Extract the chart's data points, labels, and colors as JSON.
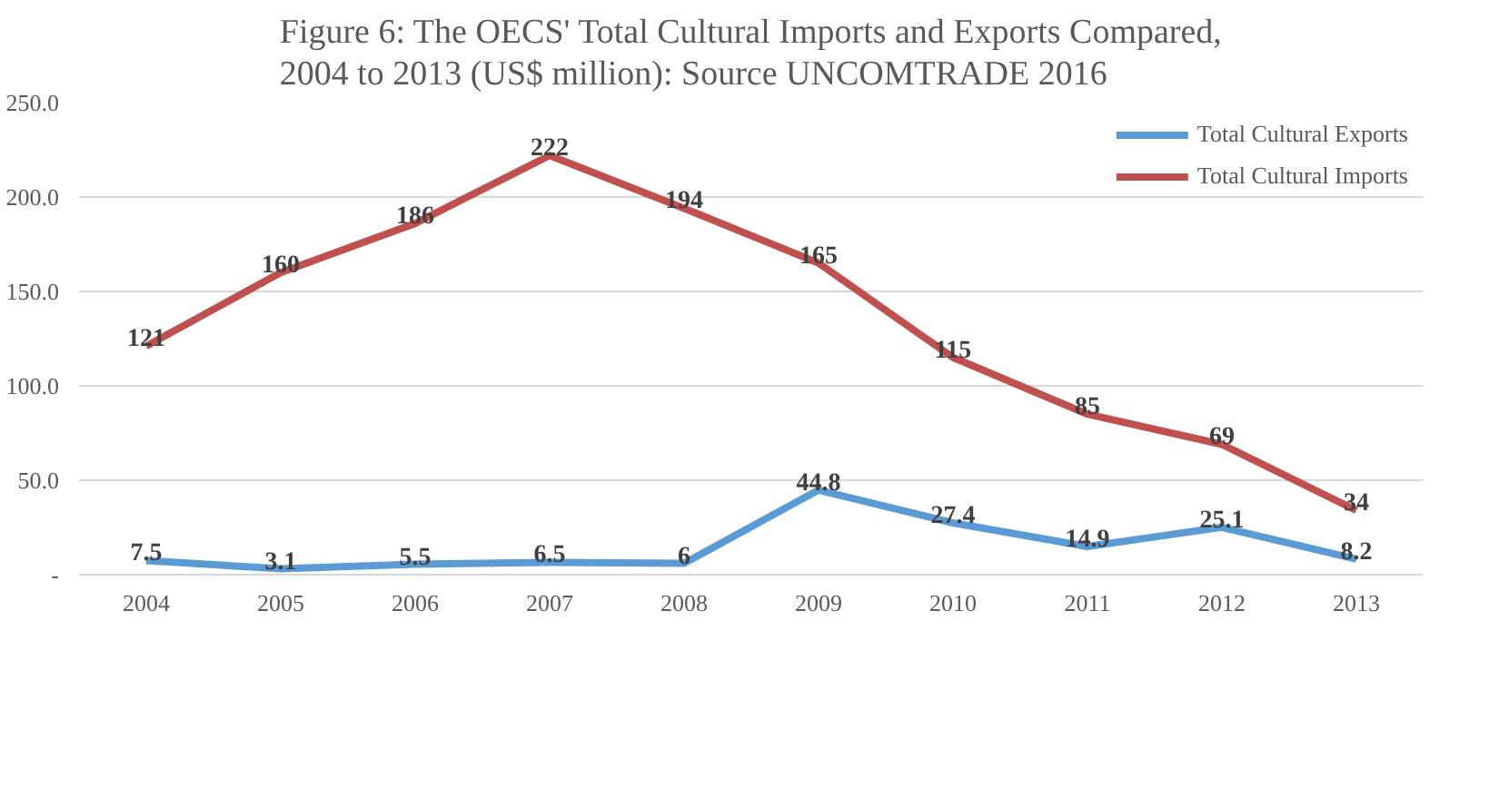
{
  "chart_data": {
    "type": "line",
    "title": "Figure 6: The OECS' Total Cultural Imports and Exports Compared,\n2004 to 2013 (US$ million): Source UNCOMTRADE 2016",
    "categories": [
      "2004",
      "2005",
      "2006",
      "2007",
      "2008",
      "2009",
      "2010",
      "2011",
      "2012",
      "2013"
    ],
    "series": [
      {
        "name": "Total Cultural Exports",
        "color": "#5b9bd5",
        "values": [
          7.5,
          3.1,
          5.5,
          6.5,
          6,
          44.8,
          27.4,
          14.9,
          25.1,
          8.2
        ]
      },
      {
        "name": "Total Cultural Imports",
        "color": "#c0504d",
        "values": [
          121,
          160,
          186,
          222,
          194,
          165,
          115,
          85,
          69,
          34
        ]
      }
    ],
    "ylim": [
      0,
      250
    ],
    "yticks": [
      {
        "value": 0,
        "label": "-"
      },
      {
        "value": 50,
        "label": "50.0"
      },
      {
        "value": 100,
        "label": "100.0"
      },
      {
        "value": 150,
        "label": "150.0"
      },
      {
        "value": 200,
        "label": "200.0"
      },
      {
        "value": 250,
        "label": "250.0"
      }
    ],
    "grid": "y",
    "legend": "top right",
    "data_labels": true,
    "marker": "none",
    "line_style": "solid"
  }
}
